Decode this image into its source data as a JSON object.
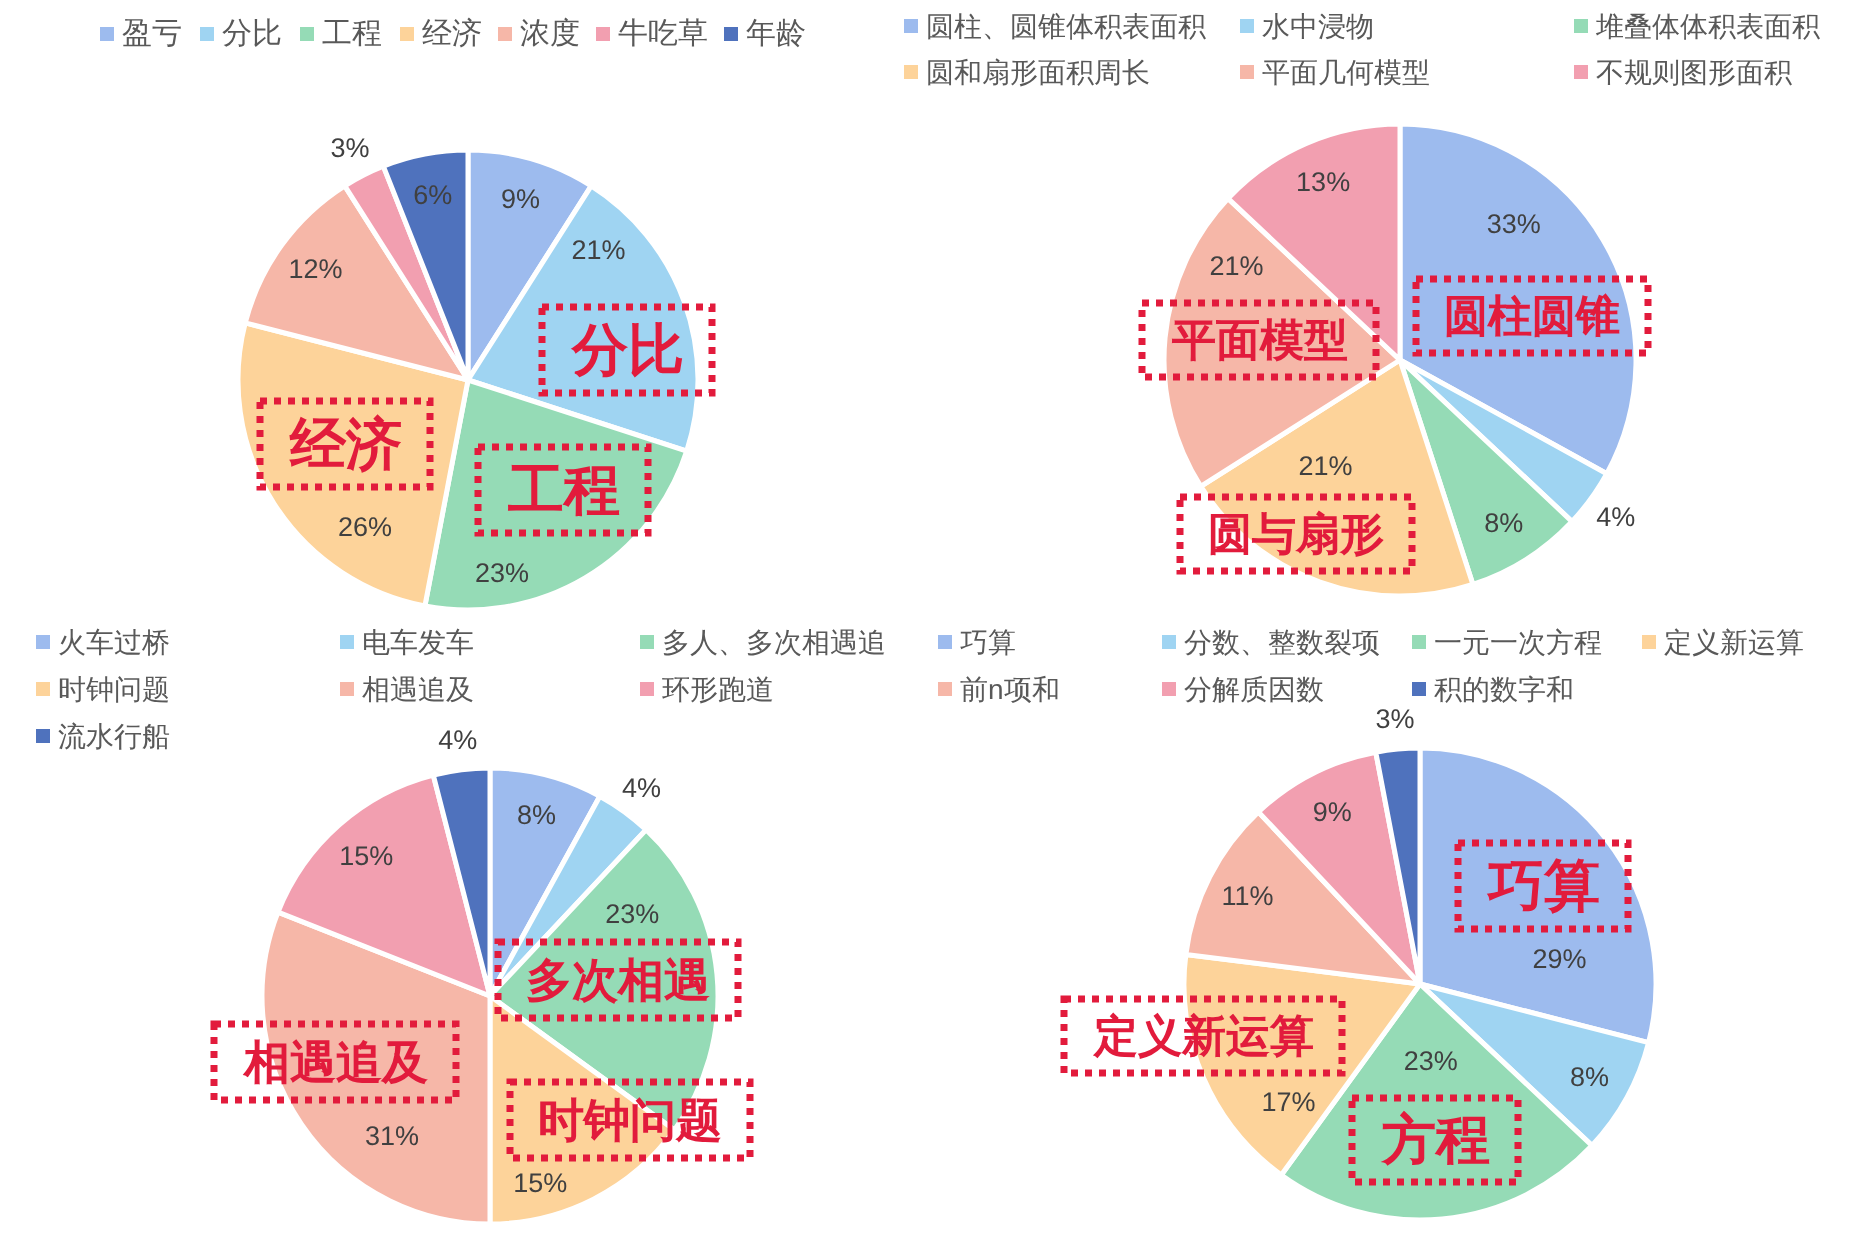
{
  "chart_data": [
    {
      "type": "pie",
      "categories": [
        "盈亏",
        "分比",
        "工程",
        "经济",
        "浓度",
        "牛吃草",
        "年龄"
      ],
      "values": [
        9,
        21,
        23,
        26,
        12,
        3,
        6
      ],
      "value_labels": [
        "9%",
        "21%",
        "23%",
        "26%",
        "12%",
        "3%",
        "6%"
      ],
      "colors": [
        "#9dbbee",
        "#9fd4f2",
        "#95dbb6",
        "#fdd39a",
        "#f6b7a8",
        "#f29fb0",
        "#4f72bd"
      ],
      "legend": "top",
      "annotations": [
        "分比",
        "工程",
        "经济"
      ]
    },
    {
      "type": "pie",
      "categories": [
        "圆柱、圆锥体积表面积",
        "水中浸物",
        "堆叠体体积表面积",
        "圆和扇形面积周长",
        "平面几何模型",
        "不规则图形面积"
      ],
      "values": [
        33,
        4,
        8,
        21,
        21,
        13
      ],
      "value_labels": [
        "33%",
        "4%",
        "8%",
        "21%",
        "21%",
        "13%"
      ],
      "colors": [
        "#9dbbee",
        "#9fd4f2",
        "#95dbb6",
        "#fdd39a",
        "#f6b7a8",
        "#f29fb0"
      ],
      "legend": "top",
      "annotations": [
        "圆柱圆锥",
        "平面模型",
        "圆与扇形"
      ]
    },
    {
      "type": "pie",
      "categories": [
        "火车过桥",
        "电车发车",
        "多人、多次相遇追",
        "时钟问题",
        "相遇追及",
        "环形跑道",
        "流水行船"
      ],
      "values": [
        8,
        4,
        23,
        15,
        31,
        15,
        4
      ],
      "value_labels": [
        "8%",
        "4%",
        "23%",
        "15%",
        "31%",
        "15%",
        "4%"
      ],
      "colors": [
        "#9dbbee",
        "#9fd4f2",
        "#95dbb6",
        "#fdd39a",
        "#f6b7a8",
        "#f29fb0",
        "#4f72bd"
      ],
      "legend": "top",
      "annotations": [
        "多次相遇",
        "相遇追及",
        "时钟问题"
      ]
    },
    {
      "type": "pie",
      "categories": [
        "巧算",
        "分数、整数裂项",
        "一元一次方程",
        "定义新运算",
        "前n项和",
        "分解质因数",
        "积的数字和"
      ],
      "values": [
        29,
        8,
        23,
        17,
        11,
        9,
        3
      ],
      "value_labels": [
        "29%",
        "8%",
        "23%",
        "17%",
        "11%",
        "9%",
        "3%"
      ],
      "colors": [
        "#9dbbee",
        "#9fd4f2",
        "#95dbb6",
        "#fdd39a",
        "#f6b7a8",
        "#f29fb0",
        "#4f72bd"
      ],
      "legend": "top",
      "annotations": [
        "巧算",
        "定义新运算",
        "方程"
      ]
    }
  ]
}
